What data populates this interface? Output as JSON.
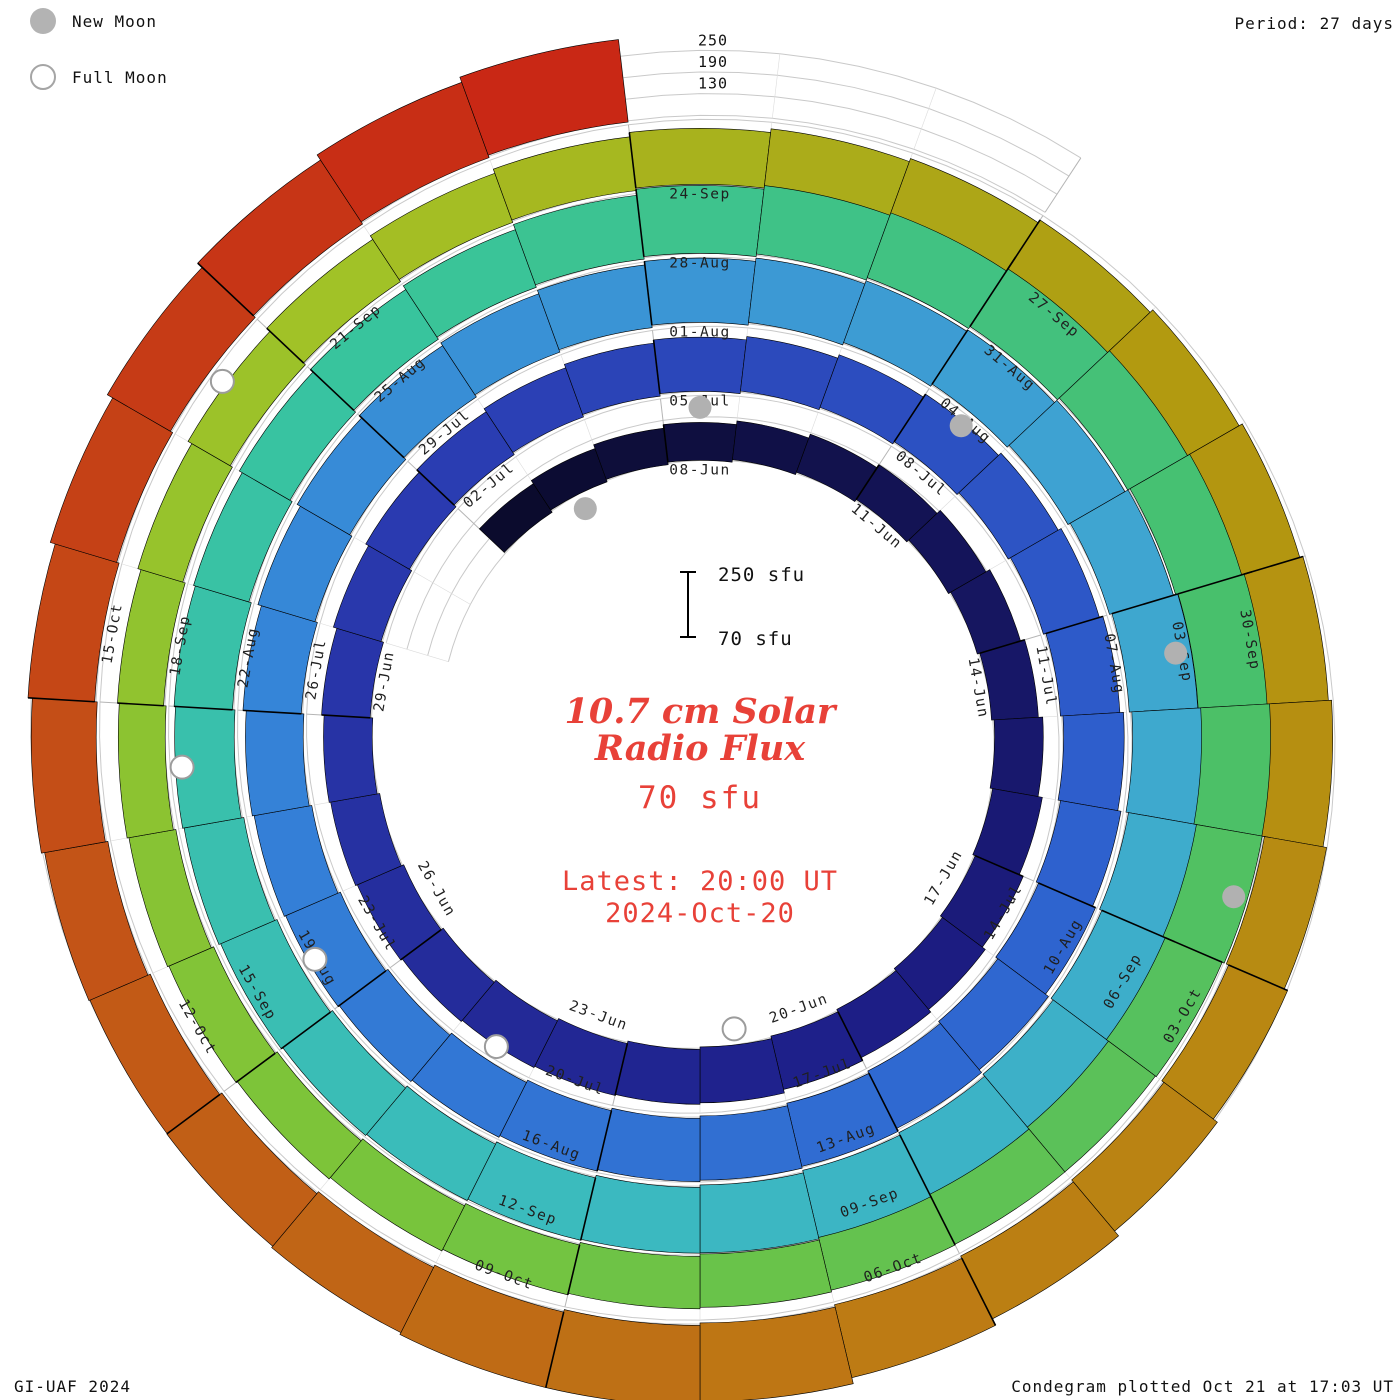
{
  "legend": {
    "new_moon_label": "New Moon",
    "full_moon_label": "Full Moon"
  },
  "header": {
    "period_label": "Period: 27 days"
  },
  "footer": {
    "credit_left": "GI-UAF 2024",
    "credit_right": "Condegram plotted Oct 21 at 17:03 UT"
  },
  "center": {
    "title_line1": "10.7 cm Solar",
    "title_line2": "Radio Flux",
    "baseline_label": "70 sfu",
    "latest_line1": "Latest: 20:00 UT",
    "latest_line2": "2024-Oct-20"
  },
  "scale_bar": {
    "top_label": "250 sfu",
    "bottom_label": "70 sfu"
  },
  "chart_data": {
    "type": "spiral",
    "title": "10.7 cm Solar Radio Flux",
    "units": "sfu",
    "period_days": 27,
    "start_date": "2024-06-05",
    "end_date": "2024-10-20",
    "baseline_sfu": 70,
    "scale_max_sfu": 250,
    "radial_gridlines_sfu": [
      130,
      190,
      250
    ],
    "radial_axis_labels": [
      "250",
      "190",
      "130"
    ],
    "first_tick_index": 3,
    "tick_interval_days": 3,
    "date_tick_labels": [
      "08-Jun",
      "11-Jun",
      "14-Jun",
      "17-Jun",
      "20-Jun",
      "23-Jun",
      "26-Jun",
      "29-Jun",
      "02-Jul",
      "05-Jul",
      "08-Jul",
      "11-Jul",
      "14-Jul",
      "17-Jul",
      "20-Jul",
      "23-Jul",
      "26-Jul",
      "29-Jul",
      "01-Aug",
      "04-Aug",
      "07-Aug",
      "10-Aug",
      "13-Aug",
      "16-Aug",
      "19-Aug",
      "22-Aug",
      "25-Aug",
      "28-Aug",
      "31-Aug",
      "03-Sep",
      "06-Sep",
      "09-Sep",
      "12-Sep",
      "15-Sep",
      "18-Sep",
      "21-Sep",
      "24-Sep",
      "27-Sep",
      "30-Sep",
      "03-Oct",
      "06-Oct",
      "09-Oct",
      "12-Oct",
      "15-Oct"
    ],
    "values_sfu": [
      165,
      168,
      172,
      175,
      178,
      182,
      185,
      190,
      195,
      200,
      205,
      210,
      215,
      218,
      220,
      222,
      225,
      222,
      218,
      215,
      212,
      210,
      208,
      205,
      205,
      208,
      210,
      212,
      215,
      218,
      220,
      222,
      225,
      228,
      230,
      232,
      235,
      238,
      240,
      242,
      245,
      248,
      250,
      248,
      245,
      242,
      240,
      238,
      235,
      232,
      230,
      232,
      235,
      238,
      240,
      242,
      245,
      248,
      250,
      252,
      250,
      252,
      255,
      260,
      270,
      280,
      290,
      285,
      275,
      265,
      258,
      252,
      248,
      245,
      242,
      240,
      238,
      235,
      232,
      230,
      232,
      235,
      240,
      248,
      258,
      270,
      285,
      300,
      305,
      298,
      285,
      270,
      255,
      242,
      232,
      225,
      220,
      218,
      215,
      212,
      210,
      208,
      205,
      202,
      200,
      198,
      200,
      205,
      210,
      215,
      220,
      225,
      228,
      230,
      232,
      235,
      238,
      240,
      242,
      245,
      248,
      255,
      265,
      278,
      288,
      292,
      285,
      272,
      260,
      252,
      248,
      250,
      255,
      262,
      272,
      282,
      292,
      300
    ],
    "new_moons": [
      "2024-06-06",
      "2024-07-05",
      "2024-08-04",
      "2024-09-03",
      "2024-10-02"
    ],
    "full_moons": [
      "2024-06-21",
      "2024-07-21",
      "2024-08-19",
      "2024-09-17",
      "2024-10-17"
    ],
    "colormap_stops": [
      [
        0.0,
        "#0b0b2d"
      ],
      [
        0.1,
        "#1d1d85"
      ],
      [
        0.19,
        "#2a3ab0"
      ],
      [
        0.28,
        "#2e62cf"
      ],
      [
        0.37,
        "#3584d8"
      ],
      [
        0.45,
        "#3fa4d2"
      ],
      [
        0.52,
        "#3bbac0"
      ],
      [
        0.59,
        "#38c49e"
      ],
      [
        0.66,
        "#49c06a"
      ],
      [
        0.73,
        "#78c43c"
      ],
      [
        0.79,
        "#a2c226"
      ],
      [
        0.84,
        "#b29a10"
      ],
      [
        0.9,
        "#bd7a14"
      ],
      [
        0.95,
        "#c35317"
      ],
      [
        1.0,
        "#c92815"
      ]
    ]
  }
}
